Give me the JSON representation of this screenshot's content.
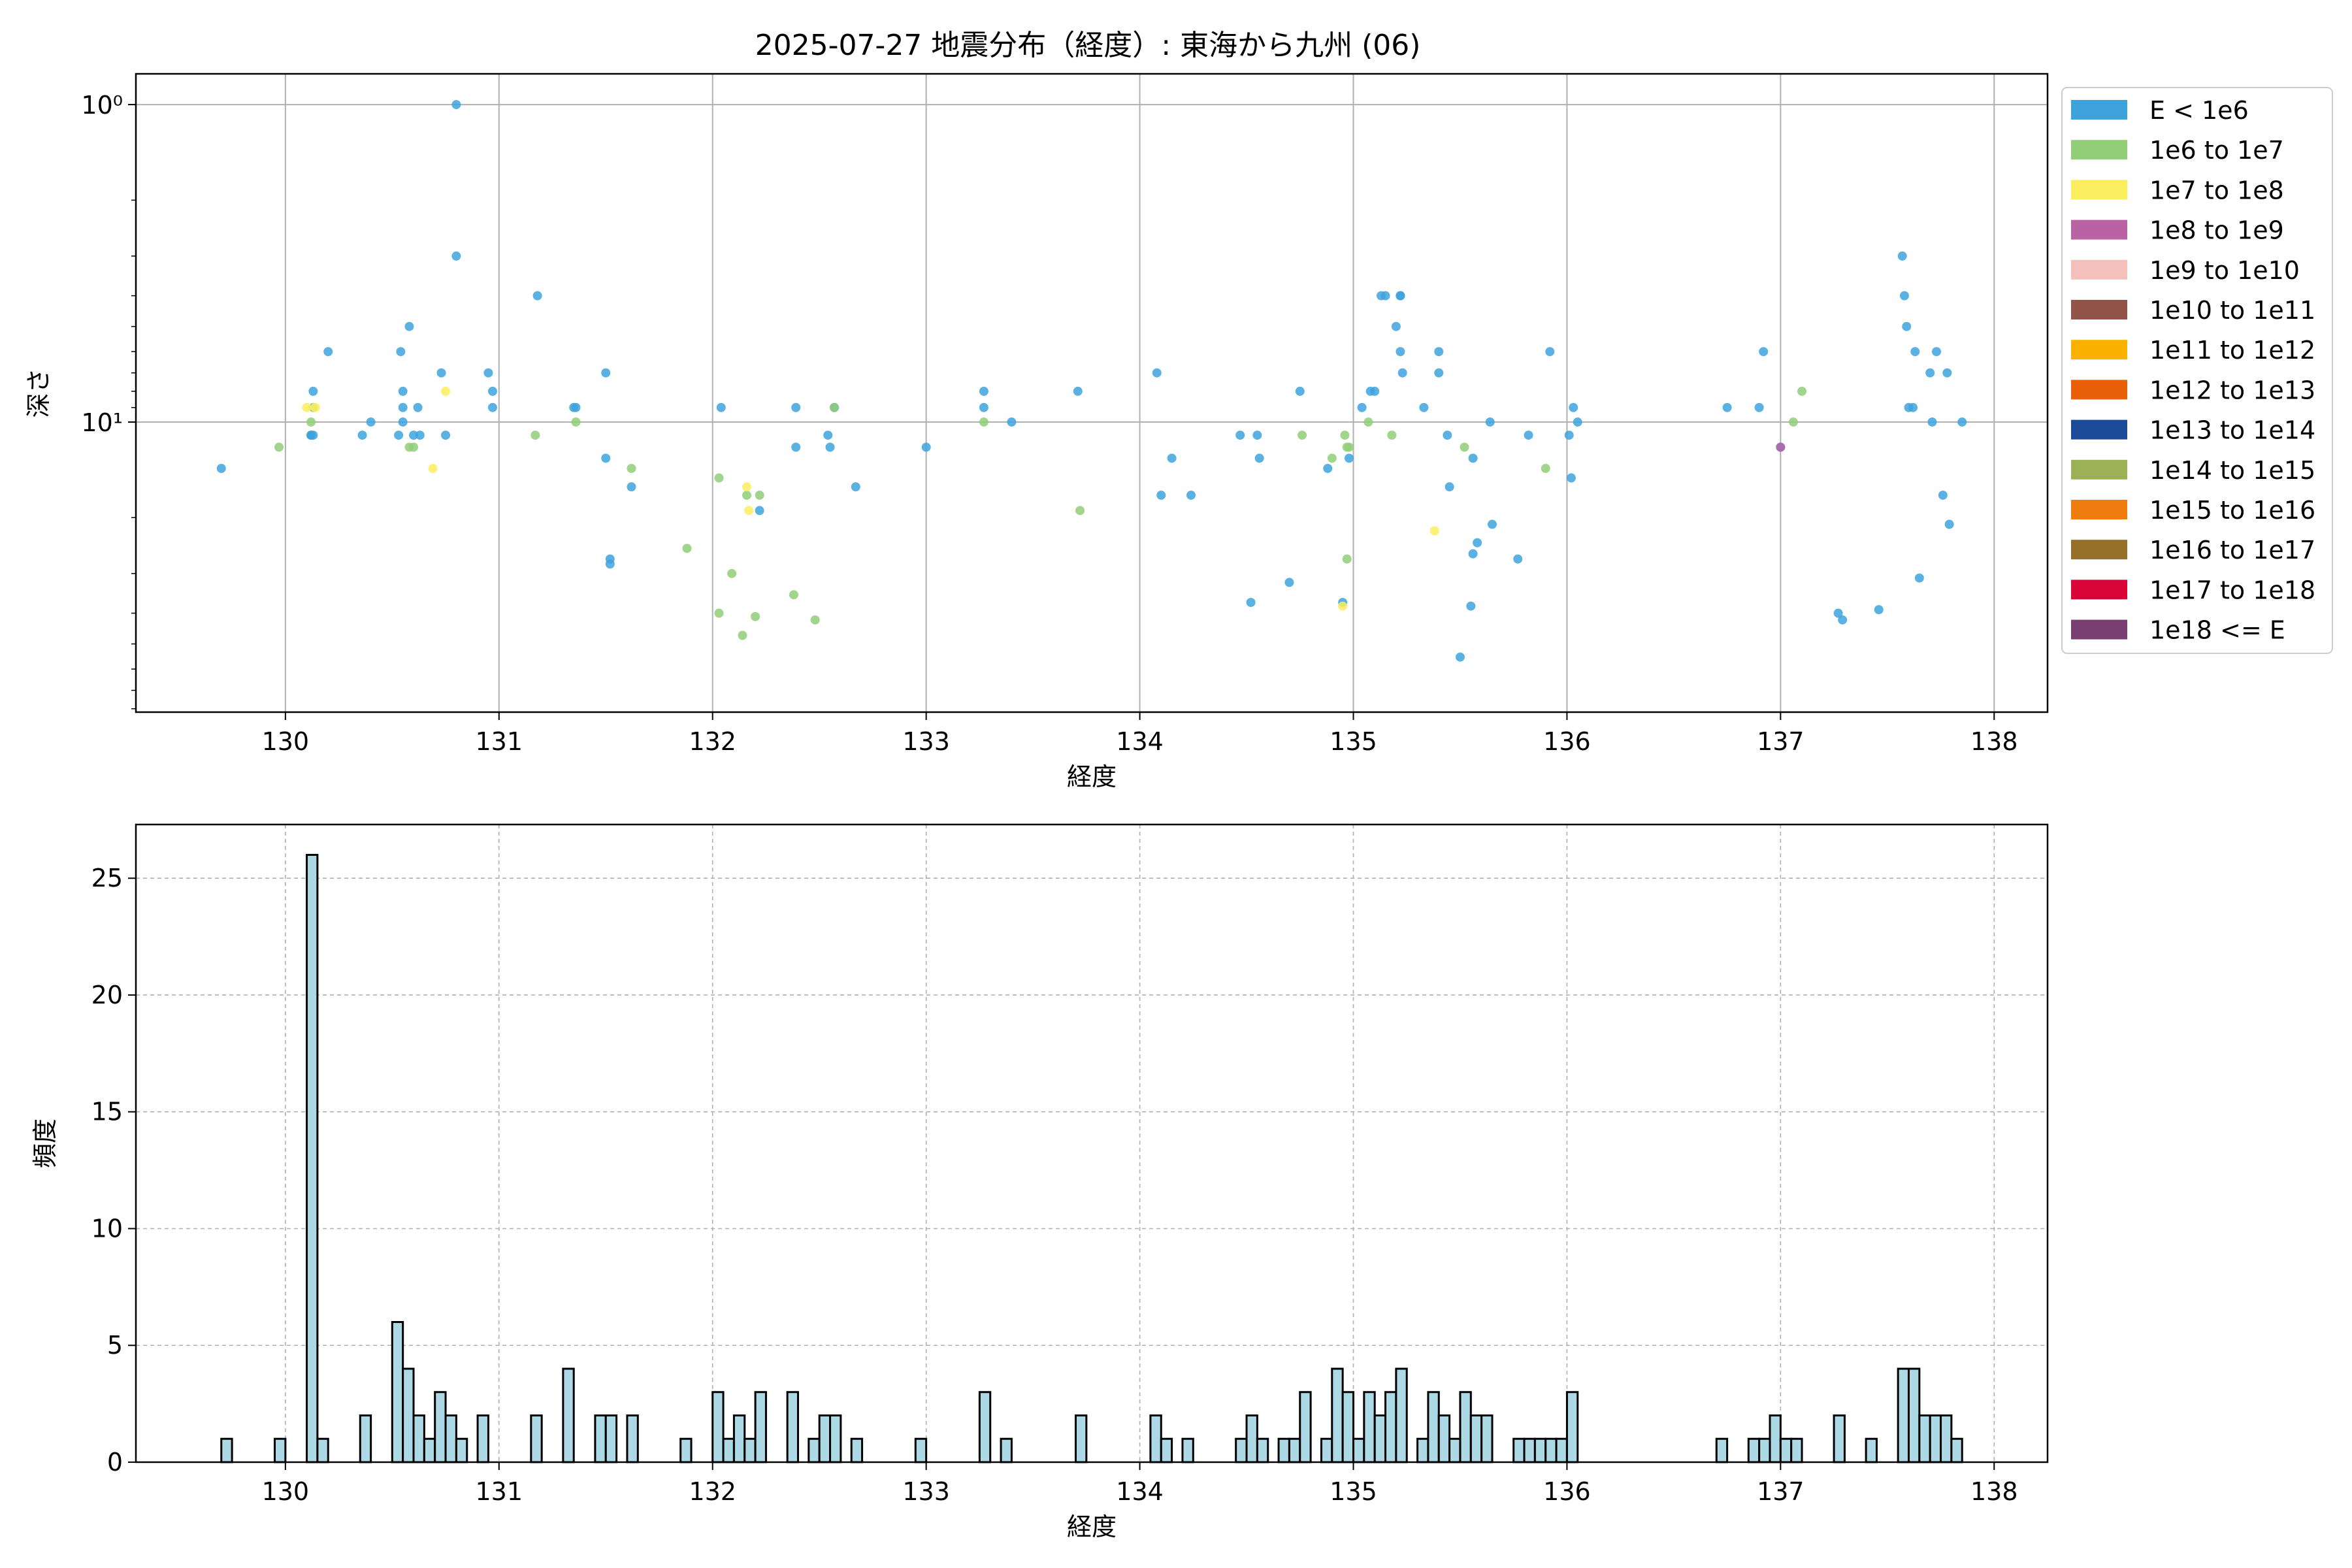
{
  "figure": {
    "title": "2025-07-27 地震分布（経度）: 東海から九州 (06)"
  },
  "legend_items": [
    {
      "label": "E < 1e6",
      "color": "#3ea3dc"
    },
    {
      "label": "1e6 to 1e7",
      "color": "#92ce78"
    },
    {
      "label": "1e7 to 1e8",
      "color": "#fbee5e"
    },
    {
      "label": "1e8 to 1e9",
      "color": "#b962a4"
    },
    {
      "label": "1e9 to 1e10",
      "color": "#f4c0bc"
    },
    {
      "label": "1e10 to 1e11",
      "color": "#925448"
    },
    {
      "label": "1e11 to 1e12",
      "color": "#f9b200"
    },
    {
      "label": "1e12 to 1e13",
      "color": "#ea6008"
    },
    {
      "label": "1e13 to 1e14",
      "color": "#1a4a98"
    },
    {
      "label": "1e14 to 1e15",
      "color": "#9cb055"
    },
    {
      "label": "1e15 to 1e16",
      "color": "#ef7c0f"
    },
    {
      "label": "1e16 to 1e17",
      "color": "#957029"
    },
    {
      "label": "1e17 to 1e18",
      "color": "#d90538"
    },
    {
      "label": "1e18 <= E",
      "color": "#7a3f72"
    }
  ],
  "chart_data": [
    {
      "type": "scatter",
      "title": "2025-07-27 地震分布（経度）: 東海から九州 (06)",
      "xlabel": "経度",
      "ylabel": "深さ",
      "xlim": [
        129.3,
        138.25
      ],
      "ylim": [
        82,
        0.8
      ],
      "yscale": "log",
      "y_inverted": true,
      "grid": true,
      "legend_position": "outside-right",
      "xticks": [
        130,
        131,
        132,
        133,
        134,
        135,
        136,
        137,
        138
      ],
      "xtick_labels": [
        "130",
        "131",
        "132",
        "133",
        "134",
        "135",
        "136",
        "137",
        "138"
      ],
      "yticks": [
        1,
        10
      ],
      "ytick_labels": [
        "10⁰",
        "10¹"
      ],
      "series": [
        {
          "name": "E < 1e6",
          "color": "#3ea3dc",
          "points": [
            [
              129.7,
              14
            ],
            [
              130.12,
              11
            ],
            [
              130.12,
              11
            ],
            [
              130.13,
              8
            ],
            [
              130.13,
              11
            ],
            [
              130.2,
              6
            ],
            [
              130.36,
              11
            ],
            [
              130.4,
              10
            ],
            [
              130.53,
              11
            ],
            [
              130.54,
              6
            ],
            [
              130.55,
              9
            ],
            [
              130.55,
              8
            ],
            [
              130.55,
              10
            ],
            [
              130.6,
              11
            ],
            [
              130.62,
              9
            ],
            [
              130.63,
              11
            ],
            [
              130.58,
              5
            ],
            [
              130.73,
              7
            ],
            [
              130.75,
              11
            ],
            [
              130.8,
              1
            ],
            [
              130.8,
              3
            ],
            [
              130.95,
              7
            ],
            [
              130.97,
              8
            ],
            [
              130.97,
              9
            ],
            [
              131.18,
              4
            ],
            [
              131.35,
              9
            ],
            [
              131.36,
              9
            ],
            [
              131.5,
              13
            ],
            [
              131.5,
              7
            ],
            [
              131.52,
              27
            ],
            [
              131.52,
              28
            ],
            [
              131.62,
              16
            ],
            [
              132.04,
              9
            ],
            [
              132.22,
              19
            ],
            [
              132.39,
              12
            ],
            [
              132.39,
              9
            ],
            [
              132.54,
              11
            ],
            [
              132.55,
              12
            ],
            [
              132.57,
              9
            ],
            [
              132.67,
              16
            ],
            [
              133.0,
              12
            ],
            [
              133.27,
              8
            ],
            [
              133.27,
              9
            ],
            [
              133.4,
              10
            ],
            [
              133.71,
              8
            ],
            [
              134.08,
              7
            ],
            [
              134.1,
              17
            ],
            [
              134.15,
              13
            ],
            [
              134.24,
              17
            ],
            [
              134.47,
              11
            ],
            [
              134.52,
              37
            ],
            [
              134.55,
              11
            ],
            [
              134.56,
              13
            ],
            [
              134.7,
              32
            ],
            [
              134.75,
              8
            ],
            [
              134.88,
              14
            ],
            [
              134.95,
              37
            ],
            [
              134.98,
              13
            ],
            [
              135.04,
              9
            ],
            [
              135.08,
              8
            ],
            [
              135.1,
              8
            ],
            [
              135.13,
              4
            ],
            [
              135.15,
              4
            ],
            [
              135.2,
              5
            ],
            [
              135.22,
              4
            ],
            [
              135.22,
              4
            ],
            [
              135.22,
              6
            ],
            [
              135.23,
              7
            ],
            [
              135.33,
              9
            ],
            [
              135.4,
              6
            ],
            [
              135.4,
              7
            ],
            [
              135.44,
              11
            ],
            [
              135.45,
              16
            ],
            [
              135.5,
              55
            ],
            [
              135.55,
              38
            ],
            [
              135.56,
              13
            ],
            [
              135.56,
              26
            ],
            [
              135.58,
              24
            ],
            [
              135.64,
              10
            ],
            [
              135.65,
              21
            ],
            [
              135.77,
              27
            ],
            [
              135.82,
              11
            ],
            [
              135.92,
              6
            ],
            [
              136.01,
              11
            ],
            [
              136.02,
              15
            ],
            [
              136.03,
              9
            ],
            [
              136.05,
              10
            ],
            [
              136.75,
              9
            ],
            [
              136.9,
              9
            ],
            [
              136.92,
              6
            ],
            [
              137.0,
              12
            ],
            [
              137.27,
              40
            ],
            [
              137.29,
              42
            ],
            [
              137.46,
              39
            ],
            [
              137.57,
              3
            ],
            [
              137.58,
              4
            ],
            [
              137.59,
              5
            ],
            [
              137.6,
              9
            ],
            [
              137.62,
              9
            ],
            [
              137.63,
              6
            ],
            [
              137.65,
              31
            ],
            [
              137.7,
              7
            ],
            [
              137.71,
              10
            ],
            [
              137.73,
              6
            ],
            [
              137.76,
              17
            ],
            [
              137.78,
              7
            ],
            [
              137.79,
              21
            ],
            [
              137.85,
              10
            ]
          ]
        },
        {
          "name": "1e6 to 1e7",
          "color": "#92ce78",
          "points": [
            [
              129.97,
              12
            ],
            [
              130.12,
              10
            ],
            [
              130.13,
              9
            ],
            [
              130.58,
              12
            ],
            [
              130.6,
              12
            ],
            [
              131.17,
              11
            ],
            [
              131.36,
              10
            ],
            [
              131.62,
              14
            ],
            [
              131.88,
              25
            ],
            [
              132.03,
              15
            ],
            [
              132.03,
              40
            ],
            [
              132.09,
              30
            ],
            [
              132.14,
              47
            ],
            [
              132.16,
              17
            ],
            [
              132.2,
              41
            ],
            [
              132.22,
              17
            ],
            [
              132.38,
              35
            ],
            [
              132.48,
              42
            ],
            [
              132.57,
              9
            ],
            [
              133.27,
              10
            ],
            [
              133.72,
              19
            ],
            [
              134.76,
              11
            ],
            [
              134.9,
              13
            ],
            [
              134.96,
              11
            ],
            [
              134.97,
              12
            ],
            [
              134.98,
              12
            ],
            [
              134.97,
              27
            ],
            [
              135.07,
              10
            ],
            [
              135.18,
              11
            ],
            [
              135.52,
              12
            ],
            [
              135.9,
              14
            ],
            [
              137.06,
              10
            ],
            [
              137.1,
              8
            ]
          ]
        },
        {
          "name": "1e7 to 1e8",
          "color": "#fbee5e",
          "points": [
            [
              130.1,
              9
            ],
            [
              130.14,
              9
            ],
            [
              130.69,
              14
            ],
            [
              130.75,
              8
            ],
            [
              132.16,
              16
            ],
            [
              132.17,
              19
            ],
            [
              134.95,
              38
            ],
            [
              135.38,
              22
            ]
          ]
        },
        {
          "name": "1e8 to 1e9",
          "color": "#b962a4",
          "points": [
            [
              137.0,
              12
            ]
          ]
        }
      ]
    },
    {
      "type": "bar",
      "title": "",
      "xlabel": "経度",
      "ylabel": "頻度",
      "xlim": [
        129.3,
        138.25
      ],
      "ylim": [
        0,
        27.3
      ],
      "grid": true,
      "grid_style": "dashed",
      "bin_width": 0.05,
      "bar_color": "#add8e6",
      "edge_color": "#000000",
      "xticks": [
        130,
        131,
        132,
        133,
        134,
        135,
        136,
        137,
        138
      ],
      "xtick_labels": [
        "130",
        "131",
        "132",
        "133",
        "134",
        "135",
        "136",
        "137",
        "138"
      ],
      "yticks": [
        0,
        5,
        10,
        15,
        20,
        25
      ],
      "ytick_labels": [
        "0",
        "5",
        "10",
        "15",
        "20",
        "25"
      ],
      "bins": [
        [
          129.7,
          1
        ],
        [
          129.95,
          1
        ],
        [
          130.1,
          26
        ],
        [
          130.15,
          1
        ],
        [
          130.35,
          2
        ],
        [
          130.5,
          6
        ],
        [
          130.55,
          4
        ],
        [
          130.6,
          2
        ],
        [
          130.65,
          1
        ],
        [
          130.7,
          3
        ],
        [
          130.75,
          2
        ],
        [
          130.8,
          1
        ],
        [
          130.9,
          2
        ],
        [
          131.15,
          2
        ],
        [
          131.3,
          4
        ],
        [
          131.45,
          2
        ],
        [
          131.5,
          2
        ],
        [
          131.6,
          2
        ],
        [
          131.85,
          1
        ],
        [
          132.0,
          3
        ],
        [
          132.05,
          1
        ],
        [
          132.1,
          2
        ],
        [
          132.15,
          1
        ],
        [
          132.2,
          3
        ],
        [
          132.35,
          3
        ],
        [
          132.45,
          1
        ],
        [
          132.5,
          2
        ],
        [
          132.55,
          2
        ],
        [
          132.65,
          1
        ],
        [
          132.95,
          1
        ],
        [
          133.25,
          3
        ],
        [
          133.35,
          1
        ],
        [
          133.7,
          2
        ],
        [
          134.05,
          2
        ],
        [
          134.1,
          1
        ],
        [
          134.2,
          1
        ],
        [
          134.45,
          1
        ],
        [
          134.5,
          2
        ],
        [
          134.55,
          1
        ],
        [
          134.65,
          1
        ],
        [
          134.7,
          1
        ],
        [
          134.75,
          3
        ],
        [
          134.85,
          1
        ],
        [
          134.9,
          4
        ],
        [
          134.95,
          3
        ],
        [
          135.0,
          1
        ],
        [
          135.05,
          3
        ],
        [
          135.1,
          2
        ],
        [
          135.15,
          3
        ],
        [
          135.2,
          4
        ],
        [
          135.3,
          1
        ],
        [
          135.35,
          3
        ],
        [
          135.4,
          2
        ],
        [
          135.45,
          1
        ],
        [
          135.5,
          3
        ],
        [
          135.55,
          2
        ],
        [
          135.6,
          2
        ],
        [
          135.75,
          1
        ],
        [
          135.8,
          1
        ],
        [
          135.85,
          1
        ],
        [
          135.9,
          1
        ],
        [
          135.95,
          1
        ],
        [
          136.0,
          3
        ],
        [
          136.7,
          1
        ],
        [
          136.85,
          1
        ],
        [
          136.9,
          1
        ],
        [
          136.95,
          2
        ],
        [
          137.0,
          1
        ],
        [
          137.05,
          1
        ],
        [
          137.25,
          2
        ],
        [
          137.4,
          1
        ],
        [
          137.55,
          4
        ],
        [
          137.6,
          4
        ],
        [
          137.65,
          2
        ],
        [
          137.7,
          2
        ],
        [
          137.75,
          2
        ],
        [
          137.8,
          1
        ]
      ]
    }
  ]
}
